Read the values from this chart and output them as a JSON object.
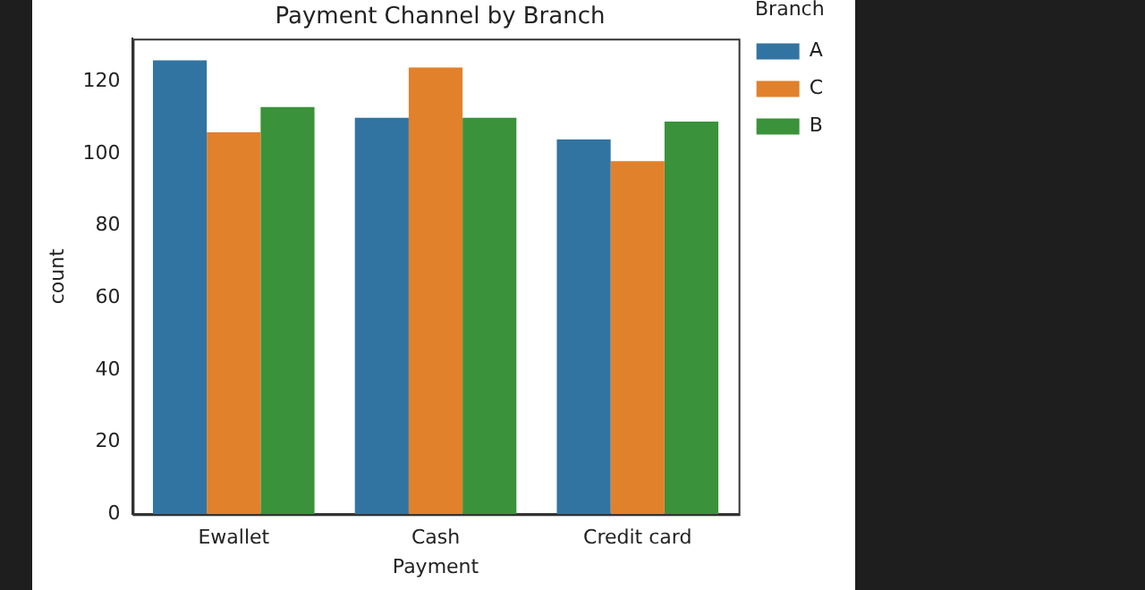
{
  "chart_data": {
    "type": "bar",
    "title": "Payment Channel by Branch",
    "xlabel": "Payment",
    "ylabel": "count",
    "legend_title": "Branch",
    "categories": [
      "Ewallet",
      "Cash",
      "Credit card"
    ],
    "series": [
      {
        "name": "A",
        "color": "#3274a1",
        "values": [
          126,
          110,
          104
        ]
      },
      {
        "name": "C",
        "color": "#e1812c",
        "values": [
          106,
          124,
          98
        ]
      },
      {
        "name": "B",
        "color": "#3a923a",
        "values": [
          113,
          110,
          109
        ]
      }
    ],
    "ylim": [
      0,
      132
    ],
    "yticks": [
      0,
      20,
      40,
      60,
      80,
      100,
      120
    ],
    "grid": false,
    "legend": "right"
  }
}
